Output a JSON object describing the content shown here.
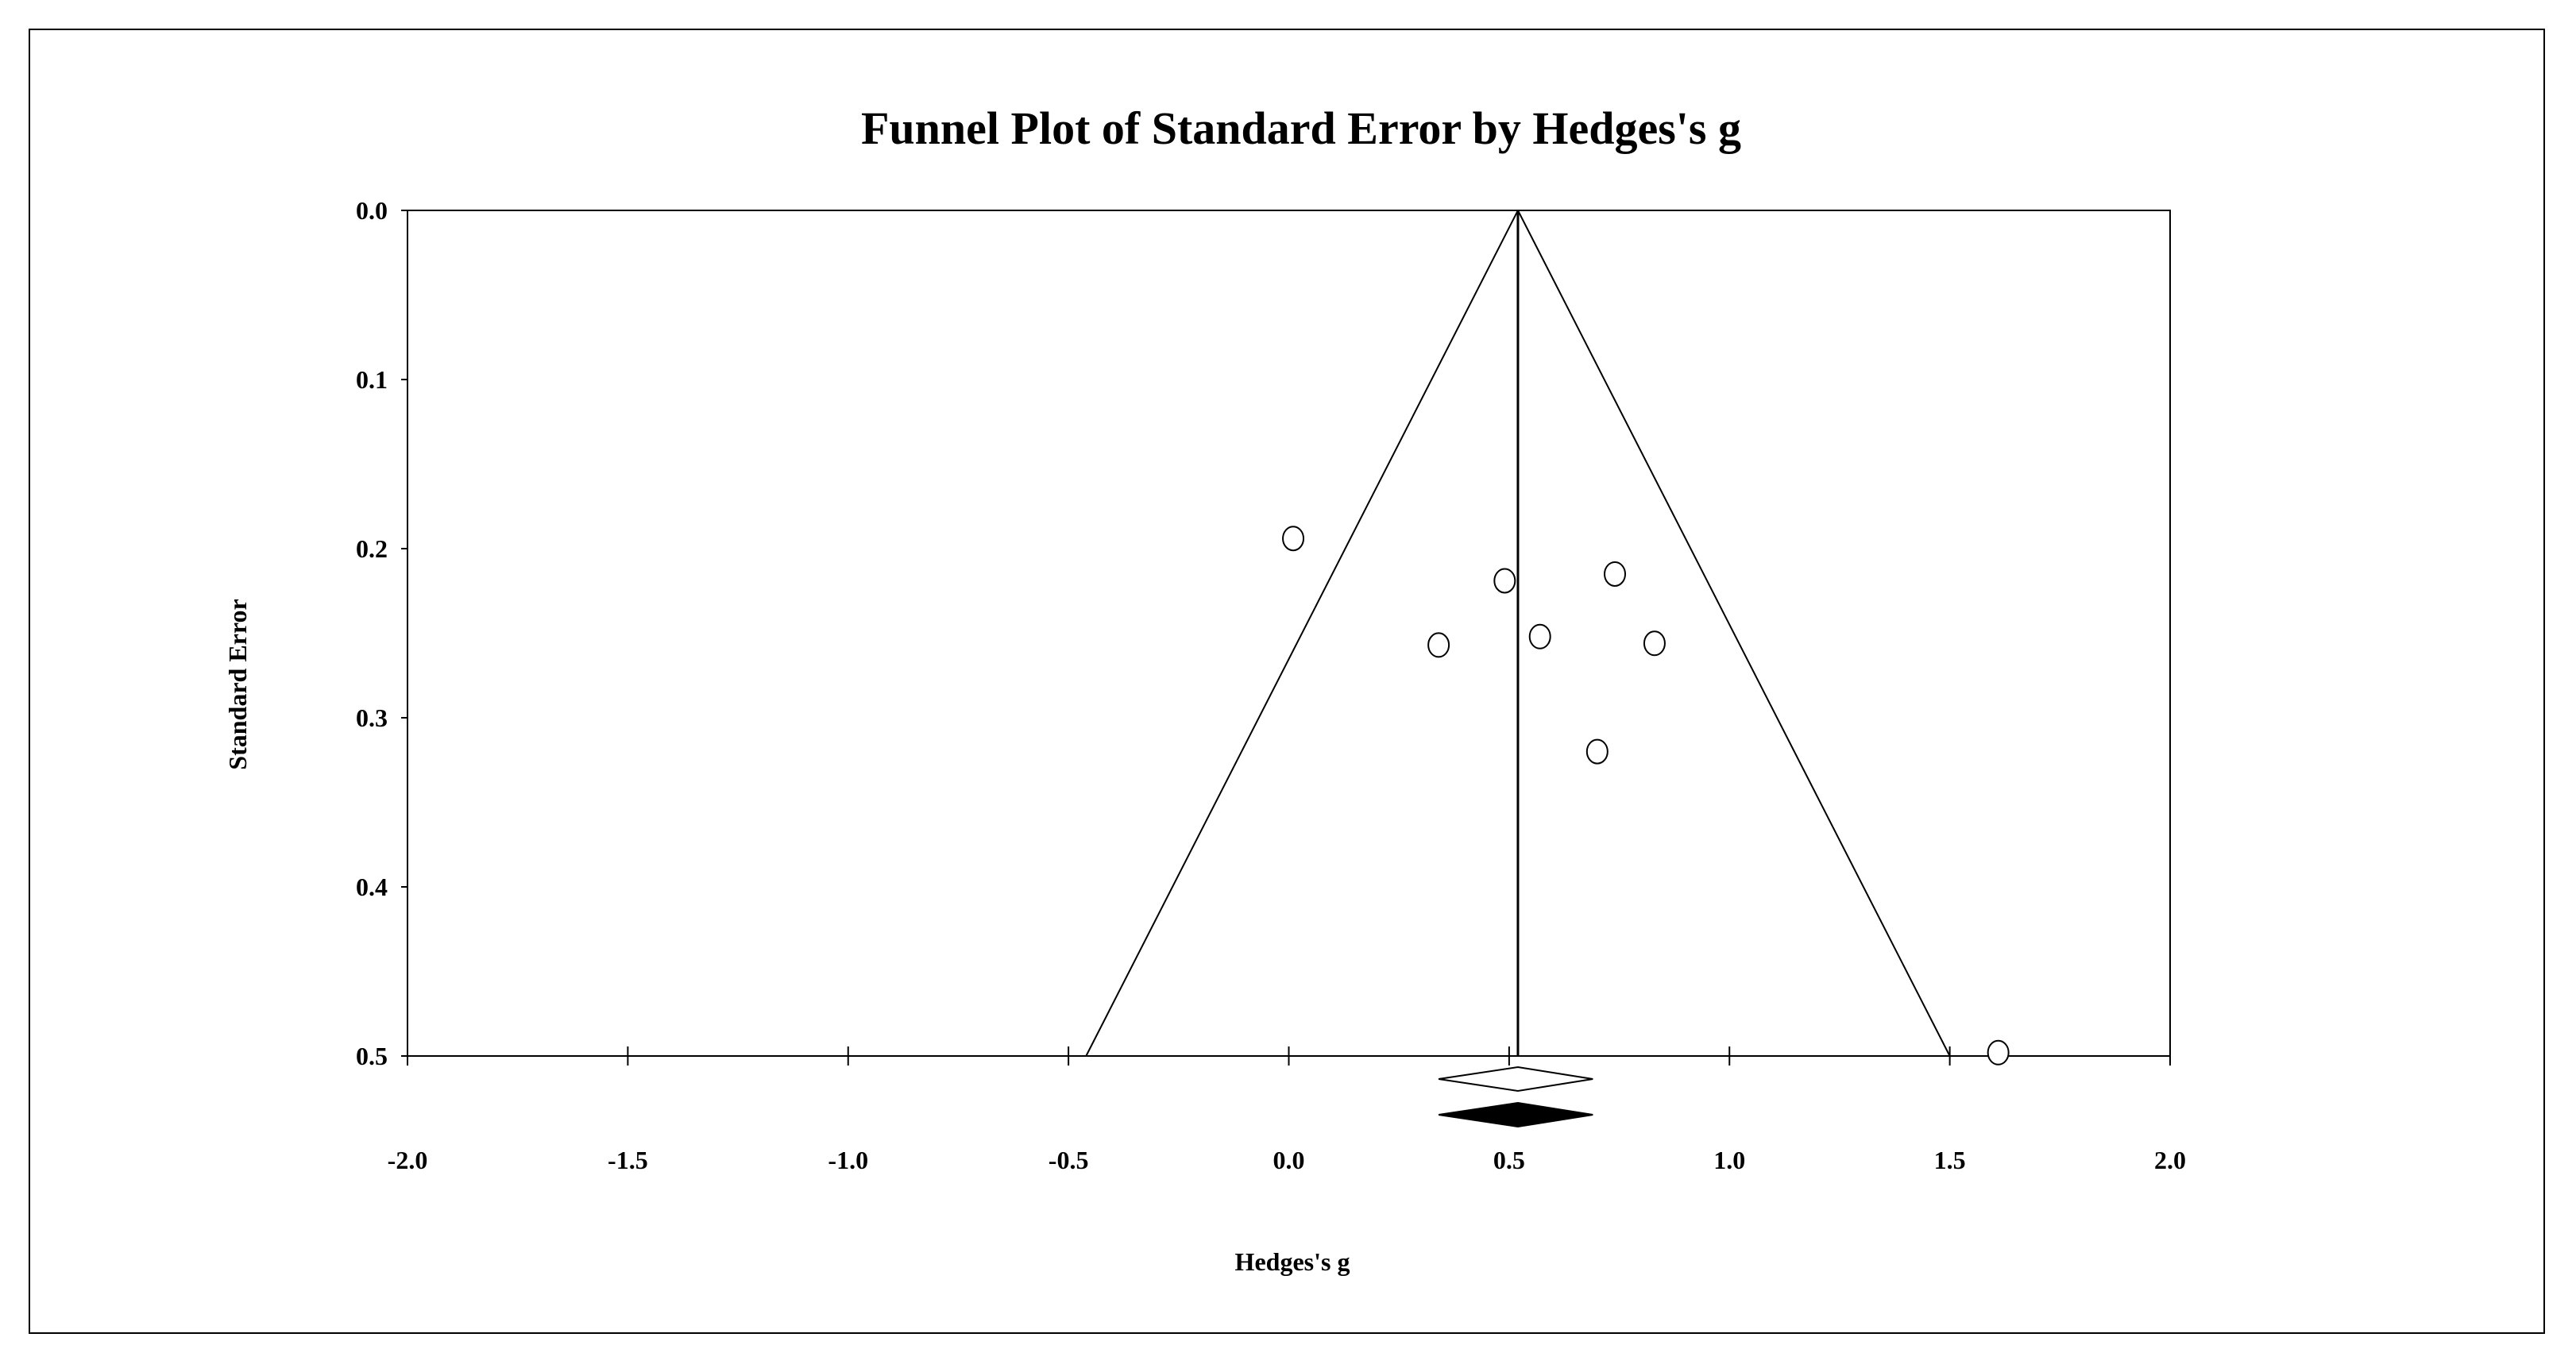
{
  "chart_data": {
    "type": "scatter",
    "subtype": "funnel",
    "title": "Funnel Plot of Standard Error by Hedges's g",
    "xlabel": "Hedges's g",
    "ylabel": "Standard Error",
    "xlim": [
      -2.0,
      2.0
    ],
    "ylim": [
      0.0,
      0.5
    ],
    "y_inverted": true,
    "grid": false,
    "legend": "none",
    "x_ticks": [
      "-2.0",
      "-1.5",
      "-1.0",
      "-0.5",
      "0.0",
      "0.5",
      "1.0",
      "1.5",
      "2.0"
    ],
    "y_ticks": [
      "0.0",
      "0.1",
      "0.2",
      "0.3",
      "0.4",
      "0.5"
    ],
    "points": [
      {
        "x": 0.01,
        "y": 0.194
      },
      {
        "x": 0.49,
        "y": 0.219
      },
      {
        "x": 0.74,
        "y": 0.215
      },
      {
        "x": 0.34,
        "y": 0.257
      },
      {
        "x": 0.57,
        "y": 0.252
      },
      {
        "x": 0.83,
        "y": 0.256
      },
      {
        "x": 0.7,
        "y": 0.32
      },
      {
        "x": 1.61,
        "y": 0.498
      }
    ],
    "pooled_estimate": 0.52,
    "funnel_limits_at_max_se": [
      -0.46,
      1.5
    ],
    "summary_diamonds": [
      {
        "style": "open",
        "center": 0.52,
        "lower": 0.34,
        "upper": 0.69
      },
      {
        "style": "filled",
        "center": 0.52,
        "lower": 0.34,
        "upper": 0.69
      }
    ],
    "colors": {
      "line": "#000000",
      "background": "#ffffff"
    }
  }
}
